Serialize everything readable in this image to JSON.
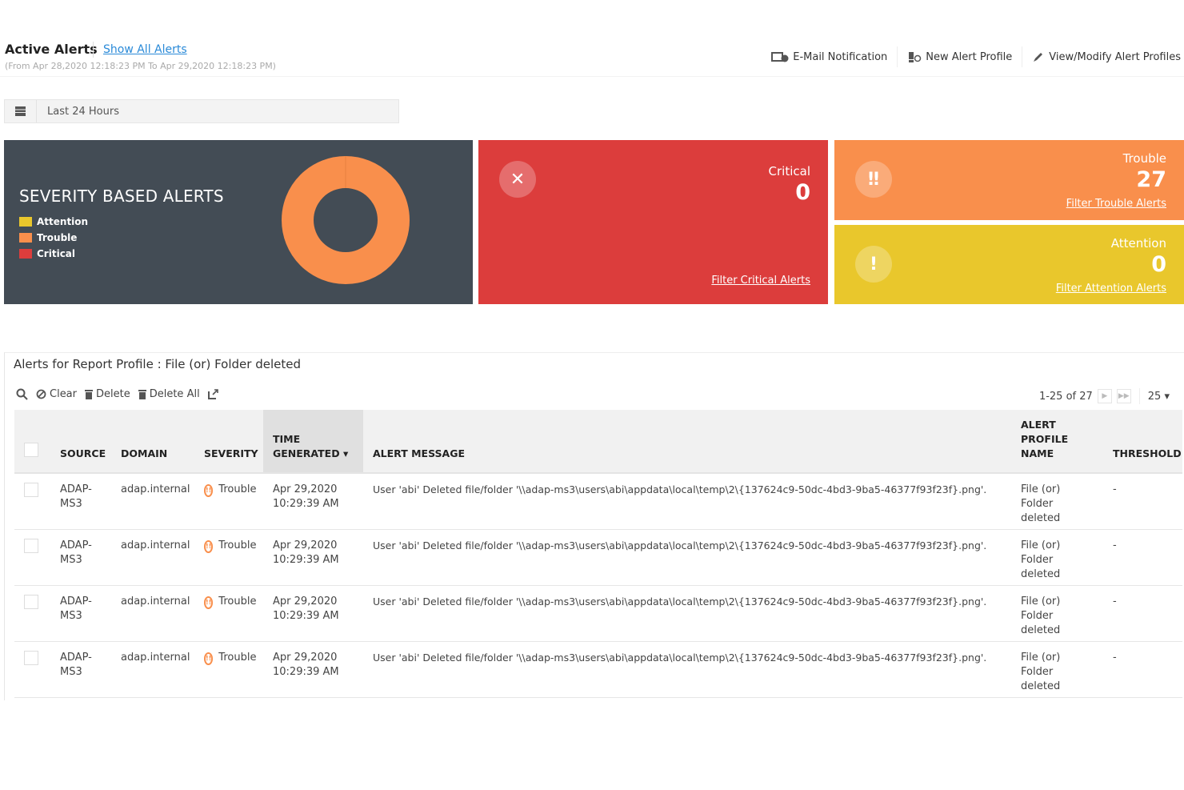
{
  "header": {
    "title": "Active Alerts",
    "show_all": "Show All Alerts",
    "range": "(From Apr 28,2020 12:18:23 PM To Apr 29,2020 12:18:23 PM)",
    "actions": [
      {
        "label": "E-Mail Notification",
        "icon": "email-icon"
      },
      {
        "label": "New Alert Profile",
        "icon": "new-alert-icon"
      },
      {
        "label": "View/Modify Alert Profiles",
        "icon": "pencil-icon"
      }
    ]
  },
  "date_filter": {
    "value": "Last 24 Hours",
    "icon": "calendar-icon"
  },
  "severity_panel": {
    "title": "SEVERITY BASED ALERTS",
    "legend": [
      {
        "label": "Attention",
        "color": "#e9c72c"
      },
      {
        "label": "Trouble",
        "color": "#f98f4c"
      },
      {
        "label": "Critical",
        "color": "#dc3d3c"
      }
    ],
    "chart_data": {
      "type": "pie",
      "donut": true,
      "categories": [
        "Attention",
        "Trouble",
        "Critical"
      ],
      "values": [
        0,
        27,
        0
      ],
      "colors": [
        "#e9c72c",
        "#f98f4c",
        "#dc3d3c"
      ]
    }
  },
  "cards": {
    "critical": {
      "label": "Critical",
      "count": "0",
      "link": "Filter Critical Alerts",
      "color": "#dc3d3c"
    },
    "trouble": {
      "label": "Trouble",
      "count": "27",
      "link": "Filter Trouble Alerts",
      "color": "#f98f4c"
    },
    "attention": {
      "label": "Attention",
      "count": "0",
      "link": "Filter Attention Alerts",
      "color": "#e9c72c"
    }
  },
  "table": {
    "title": "Alerts for Report Profile : File (or) Folder deleted",
    "toolbar": {
      "clear": "Clear",
      "delete": "Delete",
      "delete_all": "Delete All"
    },
    "pager": {
      "range": "1-25 of 27",
      "page_size": "25"
    },
    "columns": {
      "source": "SOURCE",
      "domain": "DOMAIN",
      "severity": "SEVERITY",
      "time1": "TIME",
      "time2": "GENERATED",
      "message": "ALERT MESSAGE",
      "profile1": "ALERT",
      "profile2": "PROFILE",
      "profile3": "NAME",
      "threshold": "THRESHOLD"
    },
    "rows": [
      {
        "source1": "ADAP-",
        "source2": "MS3",
        "domain": "adap.internal",
        "severity": "Trouble",
        "date": "Apr 29,2020",
        "time": "10:29:39 AM",
        "message": "User 'abi' Deleted file/folder '\\\\adap-ms3\\users\\abi\\appdata\\local\\temp\\2\\{137624c9-50dc-4bd3-9ba5-46377f93f23f}.png'.",
        "profile1": "File (or) Folder",
        "profile2": "deleted",
        "threshold": "-"
      },
      {
        "source1": "ADAP-",
        "source2": "MS3",
        "domain": "adap.internal",
        "severity": "Trouble",
        "date": "Apr 29,2020",
        "time": "10:29:39 AM",
        "message": "User 'abi' Deleted file/folder '\\\\adap-ms3\\users\\abi\\appdata\\local\\temp\\2\\{137624c9-50dc-4bd3-9ba5-46377f93f23f}.png'.",
        "profile1": "File (or) Folder",
        "profile2": "deleted",
        "threshold": "-"
      },
      {
        "source1": "ADAP-",
        "source2": "MS3",
        "domain": "adap.internal",
        "severity": "Trouble",
        "date": "Apr 29,2020",
        "time": "10:29:39 AM",
        "message": "User 'abi' Deleted file/folder '\\\\adap-ms3\\users\\abi\\appdata\\local\\temp\\2\\{137624c9-50dc-4bd3-9ba5-46377f93f23f}.png'.",
        "profile1": "File (or) Folder",
        "profile2": "deleted",
        "threshold": "-"
      },
      {
        "source1": "ADAP-",
        "source2": "MS3",
        "domain": "adap.internal",
        "severity": "Trouble",
        "date": "Apr 29,2020",
        "time": "10:29:39 AM",
        "message": "User 'abi' Deleted file/folder '\\\\adap-ms3\\users\\abi\\appdata\\local\\temp\\2\\{137624c9-50dc-4bd3-9ba5-46377f93f23f}.png'.",
        "profile1": "File (or) Folder",
        "profile2": "deleted",
        "threshold": "-"
      }
    ]
  }
}
